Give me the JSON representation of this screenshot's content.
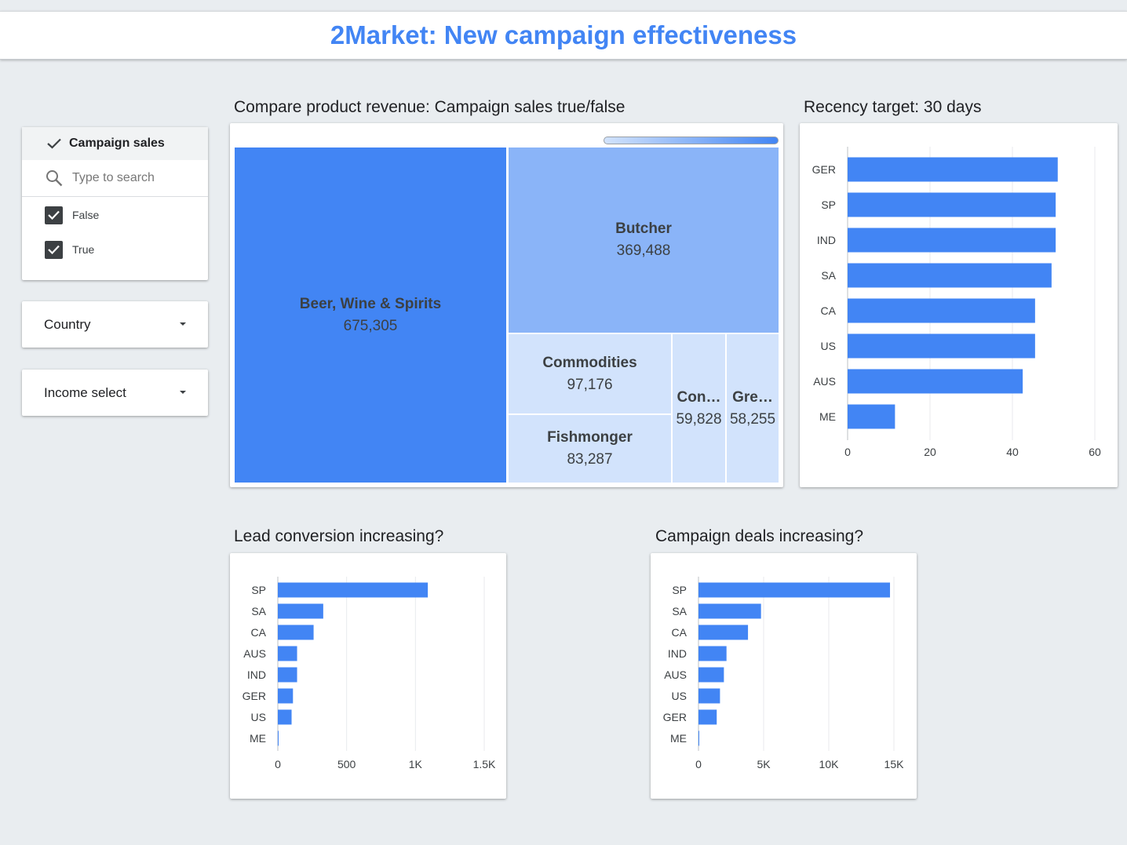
{
  "header": {
    "title": "2Market: New campaign effectiveness"
  },
  "colors": {
    "accent": "#4285f4",
    "bar": "#4285f4",
    "treemap_dark": "#4285f4",
    "treemap_mid": "#8ab4f8",
    "treemap_light": "#d2e3fc"
  },
  "filters": {
    "campaign": {
      "label": "Campaign sales",
      "check_icon": "check-icon",
      "search_icon": "search-icon",
      "search_placeholder": "Type to search",
      "options": [
        {
          "label": "False",
          "checked": true
        },
        {
          "label": "True",
          "checked": true
        }
      ]
    },
    "country": {
      "label": "Country",
      "icon": "caret-down-icon"
    },
    "income": {
      "label": "Income select",
      "icon": "caret-down-icon"
    }
  },
  "treemap": {
    "title": "Compare product revenue: Campaign sales true/false",
    "items": [
      {
        "name": "Beer, Wine & Spirits",
        "value": "675,305"
      },
      {
        "name": "Butcher",
        "value": "369,488"
      },
      {
        "name": "Commodities",
        "value": "97,176"
      },
      {
        "name": "Fishmonger",
        "value": "83,287"
      },
      {
        "name": "Con…",
        "value": "59,828"
      },
      {
        "name": "Gre…",
        "value": "58,255"
      }
    ]
  },
  "charts": {
    "recency": {
      "title": "Recency target: 30 days"
    },
    "lead": {
      "title": "Lead conversion increasing?"
    },
    "deals": {
      "title": "Campaign deals increasing?"
    }
  },
  "chart_data": [
    {
      "type": "bar",
      "orientation": "horizontal",
      "title": "Compare product revenue: Campaign sales true/false",
      "subtype": "treemap",
      "categories": [
        "Beer, Wine & Spirits",
        "Butcher",
        "Commodities",
        "Fishmonger",
        "Con…",
        "Gre…"
      ],
      "values": [
        675305,
        369488,
        97176,
        83287,
        59828,
        58255
      ]
    },
    {
      "type": "bar",
      "orientation": "horizontal",
      "title": "Recency target: 30 days",
      "categories": [
        "GER",
        "SP",
        "IND",
        "SA",
        "CA",
        "US",
        "AUS",
        "ME"
      ],
      "values": [
        51,
        50.5,
        50.5,
        49.5,
        45.5,
        45.5,
        42.5,
        11.5
      ],
      "xlim": [
        0,
        60
      ],
      "xticks": [
        "0",
        "20",
        "40",
        "60"
      ],
      "grid": true
    },
    {
      "type": "bar",
      "orientation": "horizontal",
      "title": "Lead conversion increasing?",
      "categories": [
        "SP",
        "SA",
        "CA",
        "AUS",
        "IND",
        "GER",
        "US",
        "ME"
      ],
      "values": [
        1090,
        330,
        260,
        140,
        140,
        110,
        100,
        5
      ],
      "xlim": [
        0,
        1500
      ],
      "xticks": [
        "0",
        "500",
        "1K",
        "1.5K"
      ],
      "grid": true
    },
    {
      "type": "bar",
      "orientation": "horizontal",
      "title": "Campaign deals increasing?",
      "categories": [
        "SP",
        "SA",
        "CA",
        "IND",
        "AUS",
        "US",
        "GER",
        "ME"
      ],
      "values": [
        14700,
        4800,
        3800,
        2150,
        1950,
        1650,
        1400,
        50
      ],
      "xlim": [
        0,
        15000
      ],
      "xticks": [
        "0",
        "5K",
        "10K",
        "15K"
      ],
      "grid": true
    }
  ]
}
